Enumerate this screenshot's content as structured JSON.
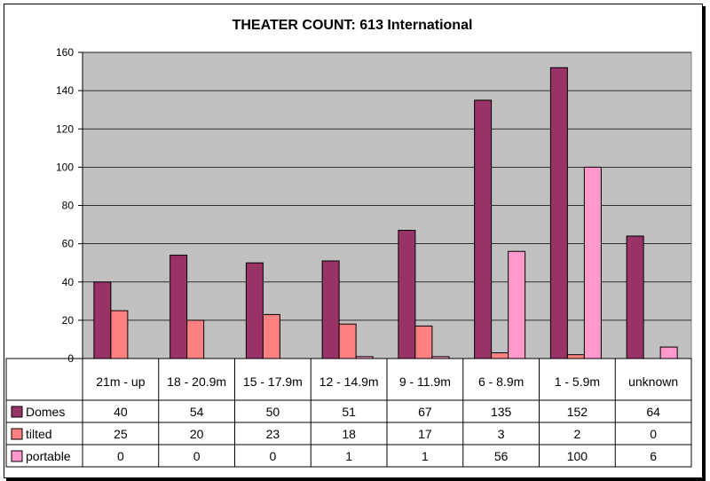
{
  "chart_data": {
    "type": "bar",
    "title": "THEATER COUNT:  613 International",
    "categories": [
      "21m - up",
      "18 - 20.9m",
      "15 - 17.9m",
      "12 - 14.9m",
      "9 - 11.9m",
      "6 - 8.9m",
      "1 - 5.9m",
      "unknown"
    ],
    "series": [
      {
        "name": "Domes",
        "color": "#993366",
        "values": [
          40,
          54,
          50,
          51,
          67,
          135,
          152,
          64
        ]
      },
      {
        "name": "tilted",
        "color": "#ff8080",
        "values": [
          25,
          20,
          23,
          18,
          17,
          3,
          2,
          0
        ]
      },
      {
        "name": "portable",
        "color": "#ff99cc",
        "values": [
          0,
          0,
          0,
          1,
          1,
          56,
          100,
          6
        ]
      }
    ],
    "ylim": [
      0,
      160
    ],
    "yticks": [
      0,
      20,
      40,
      60,
      80,
      100,
      120,
      140,
      160
    ],
    "grid": true,
    "plot_background": "#c0c0c0",
    "legend": "data-table"
  }
}
